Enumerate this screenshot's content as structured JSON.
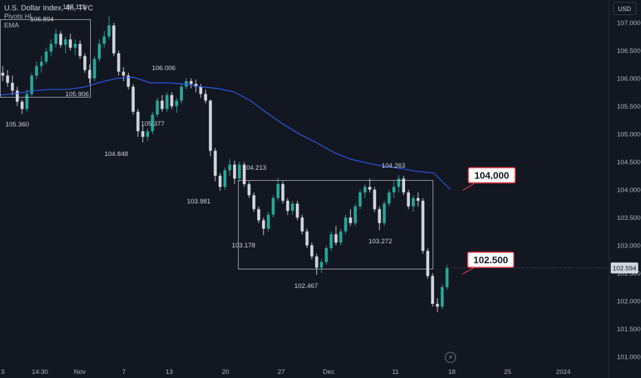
{
  "header": {
    "title": "U.S. Dollar Index, 4h, TVC",
    "indicator1": "Pivots HL",
    "indicator2": "EMA"
  },
  "currency_button": "USD",
  "goto_icon": "lightning-icon",
  "colors": {
    "background": "#131722",
    "up": "#26a69a",
    "down": "#d1d4dc",
    "ema": "#2962ff",
    "callout_border": "#f23645",
    "box": "#c8c8c8"
  },
  "chart_data": {
    "type": "candlestick",
    "title": "U.S. Dollar Index, 4h, TVC",
    "y_axis": {
      "min": 101.0,
      "max": 107.0,
      "ticks": [
        "107.000",
        "106.500",
        "106.000",
        "105.500",
        "105.000",
        "104.500",
        "104.000",
        "103.500",
        "103.000",
        "102.500",
        "102.000",
        "101.500",
        "101.000"
      ]
    },
    "x_axis": {
      "ticks": [
        "3",
        "14:30",
        "Nov",
        "7",
        "13",
        "20",
        "27",
        "Dec",
        "11",
        "18",
        "25",
        "2024"
      ]
    },
    "current_price": "102.594",
    "pivots": [
      {
        "label": "107.113",
        "price": 107.113
      },
      {
        "label": "106.894",
        "price": 106.894
      },
      {
        "label": "105.906",
        "price": 105.906
      },
      {
        "label": "105.360",
        "price": 105.36
      },
      {
        "label": "106.006",
        "price": 106.006
      },
      {
        "label": "104.848",
        "price": 104.848
      },
      {
        "label": "105.377",
        "price": 105.377
      },
      {
        "label": "104.213",
        "price": 104.213
      },
      {
        "label": "103.981",
        "price": 103.981
      },
      {
        "label": "103.178",
        "price": 103.178
      },
      {
        "label": "102.467",
        "price": 102.467
      },
      {
        "label": "104.263",
        "price": 104.263
      },
      {
        "label": "103.272",
        "price": 103.272
      }
    ],
    "callouts": [
      {
        "label": "104.000",
        "price": 104.0
      },
      {
        "label": "102.500",
        "price": 102.5
      }
    ],
    "ema_series": [
      105.7,
      105.73,
      105.78,
      105.8,
      105.8,
      105.84,
      105.93,
      106.0,
      106.02,
      105.92,
      105.92,
      105.9,
      105.85,
      105.82,
      105.76,
      105.6,
      105.38,
      105.17,
      104.99,
      104.84,
      104.67,
      104.55,
      104.48,
      104.42,
      104.38,
      104.33,
      104.3,
      104.0
    ],
    "candles": [
      [
        106.1,
        106.22,
        105.95,
        106.05
      ],
      [
        106.05,
        106.15,
        105.85,
        105.92
      ],
      [
        105.92,
        106.05,
        105.7,
        105.78
      ],
      [
        105.78,
        105.85,
        105.5,
        105.58
      ],
      [
        105.58,
        105.62,
        105.36,
        105.45
      ],
      [
        105.45,
        105.8,
        105.4,
        105.72
      ],
      [
        105.72,
        106.1,
        105.68,
        106.05
      ],
      [
        106.05,
        106.3,
        105.98,
        106.22
      ],
      [
        106.22,
        106.4,
        106.1,
        106.3
      ],
      [
        106.3,
        106.55,
        106.25,
        106.48
      ],
      [
        106.48,
        106.7,
        106.4,
        106.62
      ],
      [
        106.62,
        106.89,
        106.55,
        106.8
      ],
      [
        106.8,
        106.85,
        106.55,
        106.6
      ],
      [
        106.6,
        106.75,
        106.45,
        106.7
      ],
      [
        106.7,
        106.8,
        106.5,
        106.55
      ],
      [
        106.55,
        106.7,
        106.42,
        106.62
      ],
      [
        106.62,
        106.68,
        106.35,
        106.4
      ],
      [
        106.4,
        106.45,
        106.1,
        106.15
      ],
      [
        106.15,
        106.25,
        105.91,
        106.0
      ],
      [
        106.0,
        106.4,
        105.95,
        106.35
      ],
      [
        106.35,
        106.7,
        106.3,
        106.62
      ],
      [
        106.62,
        106.85,
        106.55,
        106.75
      ],
      [
        106.75,
        107.11,
        106.7,
        106.95
      ],
      [
        106.95,
        107.0,
        106.4,
        106.45
      ],
      [
        106.45,
        106.5,
        106.05,
        106.12
      ],
      [
        106.12,
        106.2,
        105.95,
        106.05
      ],
      [
        106.05,
        106.1,
        105.8,
        105.85
      ],
      [
        105.85,
        105.9,
        105.35,
        105.4
      ],
      [
        105.4,
        105.45,
        104.95,
        105.05
      ],
      [
        105.05,
        105.15,
        104.85,
        104.95
      ],
      [
        104.95,
        105.1,
        104.88,
        105.05
      ],
      [
        105.05,
        105.4,
        105.0,
        105.35
      ],
      [
        105.35,
        105.65,
        105.3,
        105.6
      ],
      [
        105.6,
        105.7,
        105.4,
        105.45
      ],
      [
        105.45,
        105.75,
        105.4,
        105.7
      ],
      [
        105.7,
        105.75,
        105.45,
        105.5
      ],
      [
        105.5,
        105.65,
        105.38,
        105.6
      ],
      [
        105.6,
        105.9,
        105.55,
        105.85
      ],
      [
        105.85,
        106.01,
        105.8,
        105.95
      ],
      [
        105.95,
        106.0,
        105.82,
        105.9
      ],
      [
        105.9,
        105.98,
        105.75,
        105.85
      ],
      [
        105.85,
        105.9,
        105.65,
        105.72
      ],
      [
        105.72,
        105.8,
        105.55,
        105.6
      ],
      [
        105.6,
        105.62,
        104.6,
        104.7
      ],
      [
        104.7,
        104.75,
        104.15,
        104.25
      ],
      [
        104.25,
        104.3,
        103.98,
        104.05
      ],
      [
        104.05,
        104.4,
        104.0,
        104.35
      ],
      [
        104.35,
        104.55,
        104.25,
        104.45
      ],
      [
        104.45,
        104.52,
        104.1,
        104.2
      ],
      [
        104.2,
        104.5,
        104.15,
        104.45
      ],
      [
        104.45,
        104.5,
        104.05,
        104.1
      ],
      [
        104.1,
        104.15,
        103.85,
        103.9
      ],
      [
        103.9,
        103.95,
        103.6,
        103.65
      ],
      [
        103.65,
        103.7,
        103.4,
        103.45
      ],
      [
        103.45,
        103.5,
        103.18,
        103.3
      ],
      [
        103.3,
        103.6,
        103.25,
        103.55
      ],
      [
        103.55,
        103.9,
        103.5,
        103.85
      ],
      [
        103.85,
        104.21,
        103.8,
        104.1
      ],
      [
        104.1,
        104.15,
        103.75,
        103.8
      ],
      [
        103.8,
        103.85,
        103.55,
        103.62
      ],
      [
        103.62,
        103.8,
        103.55,
        103.75
      ],
      [
        103.75,
        103.8,
        103.45,
        103.5
      ],
      [
        103.5,
        103.55,
        103.2,
        103.25
      ],
      [
        103.25,
        103.3,
        102.95,
        103.0
      ],
      [
        103.0,
        103.05,
        102.75,
        102.8
      ],
      [
        102.8,
        102.85,
        102.47,
        102.6
      ],
      [
        102.6,
        102.75,
        102.5,
        102.7
      ],
      [
        102.7,
        103.0,
        102.65,
        102.95
      ],
      [
        102.95,
        103.25,
        102.9,
        103.2
      ],
      [
        103.2,
        103.35,
        103.0,
        103.05
      ],
      [
        103.05,
        103.3,
        103.0,
        103.25
      ],
      [
        103.25,
        103.55,
        103.2,
        103.5
      ],
      [
        103.5,
        103.65,
        103.35,
        103.4
      ],
      [
        103.4,
        103.75,
        103.35,
        103.7
      ],
      [
        103.7,
        104.0,
        103.65,
        103.95
      ],
      [
        103.95,
        104.1,
        103.85,
        104.05
      ],
      [
        104.05,
        104.2,
        103.95,
        104.0
      ],
      [
        104.0,
        104.05,
        103.6,
        103.65
      ],
      [
        103.65,
        103.7,
        103.27,
        103.4
      ],
      [
        103.4,
        103.8,
        103.35,
        103.75
      ],
      [
        103.75,
        104.0,
        103.7,
        103.95
      ],
      [
        103.95,
        104.15,
        103.85,
        104.05
      ],
      [
        104.05,
        104.26,
        103.95,
        104.2
      ],
      [
        104.2,
        104.25,
        103.9,
        103.95
      ],
      [
        103.95,
        104.0,
        103.65,
        103.7
      ],
      [
        103.7,
        103.9,
        103.6,
        103.85
      ],
      [
        103.85,
        103.95,
        103.7,
        103.8
      ],
      [
        103.8,
        103.85,
        102.85,
        102.9
      ],
      [
        102.9,
        102.95,
        102.4,
        102.45
      ],
      [
        102.45,
        102.5,
        101.9,
        101.95
      ],
      [
        101.95,
        102.05,
        101.8,
        101.9
      ],
      [
        101.9,
        102.3,
        101.85,
        102.25
      ],
      [
        102.25,
        102.65,
        102.2,
        102.59
      ]
    ]
  }
}
